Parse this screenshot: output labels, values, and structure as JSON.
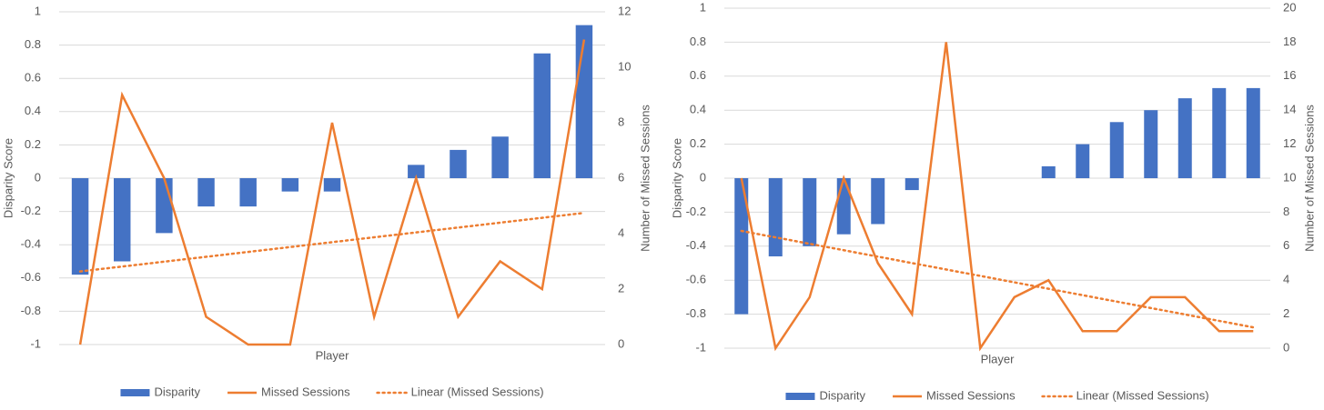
{
  "chart_data": [
    {
      "type": "combo",
      "x_label": "Player",
      "y_label": "Disparity Score",
      "y2_label": "Number of Missed Sessions",
      "categories": [
        null,
        null,
        null,
        null,
        null,
        null,
        null,
        null,
        null,
        null,
        null,
        null,
        null
      ],
      "series": [
        {
          "name": "Disparity",
          "type": "bar",
          "color": "#4472c4",
          "values": [
            -0.58,
            -0.5,
            -0.33,
            -0.17,
            -0.17,
            -0.08,
            -0.08,
            0,
            0.08,
            0.17,
            0.25,
            0.75,
            0.92
          ]
        },
        {
          "name": "Missed Sessions",
          "type": "line",
          "axis": "y2",
          "color": "#ed7d31",
          "values": [
            0,
            9,
            6,
            1,
            0,
            0,
            8,
            1,
            6,
            1,
            3,
            2,
            11
          ]
        }
      ],
      "trendline": {
        "name": "Linear (Missed Sessions)",
        "of_series": 1,
        "color": "#ed7d31"
      },
      "ylim": [
        -1,
        1
      ],
      "yticks": [
        -1,
        -0.8,
        -0.6,
        -0.4,
        -0.2,
        0,
        0.2,
        0.4,
        0.6,
        0.8,
        1
      ],
      "y2lim": [
        0,
        12
      ],
      "y2ticks": [
        0,
        2,
        4,
        6,
        8,
        10,
        12
      ],
      "grid": true,
      "legend": "bottom"
    },
    {
      "type": "combo",
      "x_label": "Player",
      "y_label": "Disparity Score",
      "y2_label": "Number of Missed Sessions",
      "categories": [
        null,
        null,
        null,
        null,
        null,
        null,
        null,
        null,
        null,
        null,
        null,
        null,
        null,
        null,
        null,
        null
      ],
      "series": [
        {
          "name": "Disparity",
          "type": "bar",
          "color": "#4472c4",
          "values": [
            -0.8,
            -0.46,
            -0.4,
            -0.33,
            -0.27,
            -0.07,
            0,
            0,
            0,
            0.07,
            0.2,
            0.33,
            0.4,
            0.47,
            0.53,
            0.53
          ]
        },
        {
          "name": "Missed Sessions",
          "type": "line",
          "axis": "y2",
          "color": "#ed7d31",
          "values": [
            10,
            0,
            3,
            10,
            5,
            2,
            18,
            0,
            3,
            4,
            1,
            1,
            3,
            3,
            1,
            1
          ]
        }
      ],
      "trendline": {
        "name": "Linear (Missed Sessions)",
        "of_series": 1,
        "color": "#ed7d31"
      },
      "ylim": [
        -1,
        1
      ],
      "yticks": [
        -1,
        -0.8,
        -0.6,
        -0.4,
        -0.2,
        0,
        0.2,
        0.4,
        0.6,
        0.8,
        1
      ],
      "y2lim": [
        0,
        20
      ],
      "y2ticks": [
        0,
        2,
        4,
        6,
        8,
        10,
        12,
        14,
        16,
        18,
        20
      ],
      "grid": true,
      "legend": "bottom"
    }
  ]
}
